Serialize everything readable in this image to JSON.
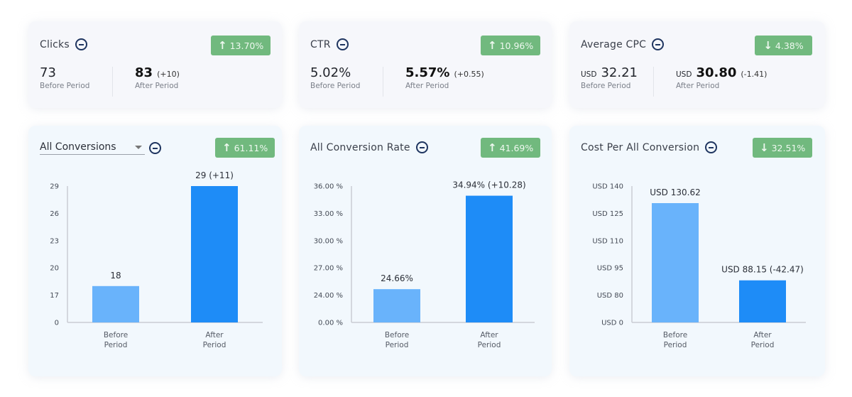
{
  "colors": {
    "badge_bg": "#71b97e",
    "before_bar": "#69b3fb",
    "after_bar": "#1e8cf7",
    "icon": "#1f3560"
  },
  "summary_cards": [
    {
      "title": "Clicks",
      "icon": "minus-circle-icon",
      "badge": {
        "direction": "up",
        "arrow": "↑",
        "value": "13.70%"
      },
      "before": {
        "currency": "",
        "value": "73",
        "label": "Before Period"
      },
      "after": {
        "currency": "",
        "value": "83",
        "delta": "(+10)",
        "label": "After Period"
      }
    },
    {
      "title": "CTR",
      "icon": "minus-circle-icon",
      "badge": {
        "direction": "up",
        "arrow": "↑",
        "value": "10.96%"
      },
      "before": {
        "currency": "",
        "value": "5.02%",
        "label": "Before Period"
      },
      "after": {
        "currency": "",
        "value": "5.57%",
        "delta": "(+0.55)",
        "label": "After Period"
      }
    },
    {
      "title": "Average CPC",
      "icon": "minus-circle-icon",
      "badge": {
        "direction": "down",
        "arrow": "↓",
        "value": "4.38%"
      },
      "before": {
        "currency": "USD",
        "value": "32.21",
        "label": "Before Period"
      },
      "after": {
        "currency": "USD",
        "value": "30.80",
        "delta": "(-1.41)",
        "label": "After Period"
      }
    }
  ],
  "chart_cards": [
    {
      "title": "All Conversions",
      "is_dropdown": true,
      "badge": {
        "direction": "up",
        "arrow": "↑",
        "value": "61.11%"
      }
    },
    {
      "title": "All Conversion Rate",
      "is_dropdown": false,
      "badge": {
        "direction": "up",
        "arrow": "↑",
        "value": "41.69%"
      }
    },
    {
      "title": "Cost Per All Conversion",
      "is_dropdown": false,
      "badge": {
        "direction": "down",
        "arrow": "↓",
        "value": "32.51%"
      }
    }
  ],
  "chart_data": [
    {
      "type": "bar",
      "title": "All Conversions",
      "categories": [
        "Before Period",
        "After Period"
      ],
      "values": [
        18,
        29
      ],
      "data_labels": [
        "18",
        "29 (+11)"
      ],
      "yticks": [
        0,
        17,
        20,
        23,
        26,
        29
      ],
      "ytick_labels": [
        "0",
        "17",
        "20",
        "23",
        "26",
        "29"
      ],
      "ylim": [
        0,
        29
      ],
      "xlabel": "",
      "ylabel": "",
      "grid": false,
      "legend": "none"
    },
    {
      "type": "bar",
      "title": "All Conversion Rate",
      "categories": [
        "Before Period",
        "After Period"
      ],
      "values": [
        24.66,
        34.94
      ],
      "data_labels": [
        "24.66%",
        "34.94% (+10.28)"
      ],
      "yticks": [
        0,
        24,
        27,
        30,
        33,
        36
      ],
      "ytick_labels": [
        "0.00 %",
        "24.00 %",
        "27.00 %",
        "30.00 %",
        "33.00 %",
        "36.00 %"
      ],
      "ylim": [
        0,
        36
      ],
      "xlabel": "",
      "ylabel": "",
      "grid": false,
      "legend": "none"
    },
    {
      "type": "bar",
      "title": "Cost Per All Conversion",
      "categories": [
        "Before Period",
        "After Period"
      ],
      "values": [
        130.62,
        88.15
      ],
      "data_labels": [
        "USD 130.62",
        "USD 88.15 (-42.47)"
      ],
      "yticks": [
        0,
        80,
        95,
        110,
        125,
        140
      ],
      "ytick_labels": [
        "USD 0",
        "USD 80",
        "USD 95",
        "USD 110",
        "USD 125",
        "USD 140"
      ],
      "ylim": [
        0,
        140
      ],
      "xlabel": "",
      "ylabel": "",
      "grid": false,
      "legend": "none"
    }
  ]
}
